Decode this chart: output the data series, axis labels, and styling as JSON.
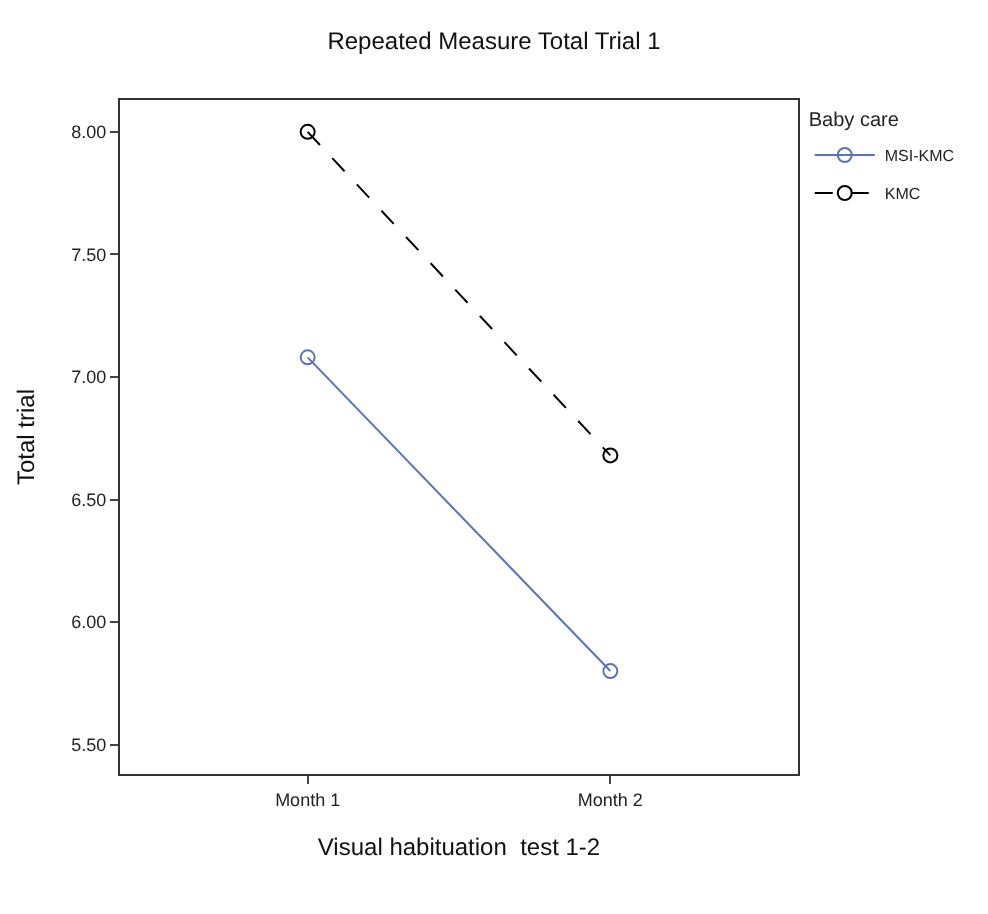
{
  "chart_data": {
    "type": "line",
    "title": "Repeated Measure Total Trial 1",
    "xlabel": "Visual habituation  test 1-2",
    "ylabel": "Total trial",
    "legend_title": "Baby care",
    "categories": [
      "Month 1",
      "Month 2"
    ],
    "series": [
      {
        "name": "MSI-KMC",
        "color": "#5b74b8",
        "values": [
          7.08,
          5.8
        ],
        "line_style": "solid"
      },
      {
        "name": "KMC",
        "color": "#000000",
        "values": [
          8.0,
          6.68
        ],
        "line_style": "dashed"
      }
    ],
    "ylim": [
      5.38,
      8.13
    ],
    "yticks": [
      {
        "value": 5.5,
        "label": "5.50"
      },
      {
        "value": 6,
        "label": "6.00"
      },
      {
        "value": 6.5,
        "label": "6.50"
      },
      {
        "value": 7,
        "label": "7.00"
      },
      {
        "value": 7.5,
        "label": "7.50"
      },
      {
        "value": 8,
        "label": "8.00"
      }
    ],
    "marker": "circle",
    "legend": "top right"
  }
}
